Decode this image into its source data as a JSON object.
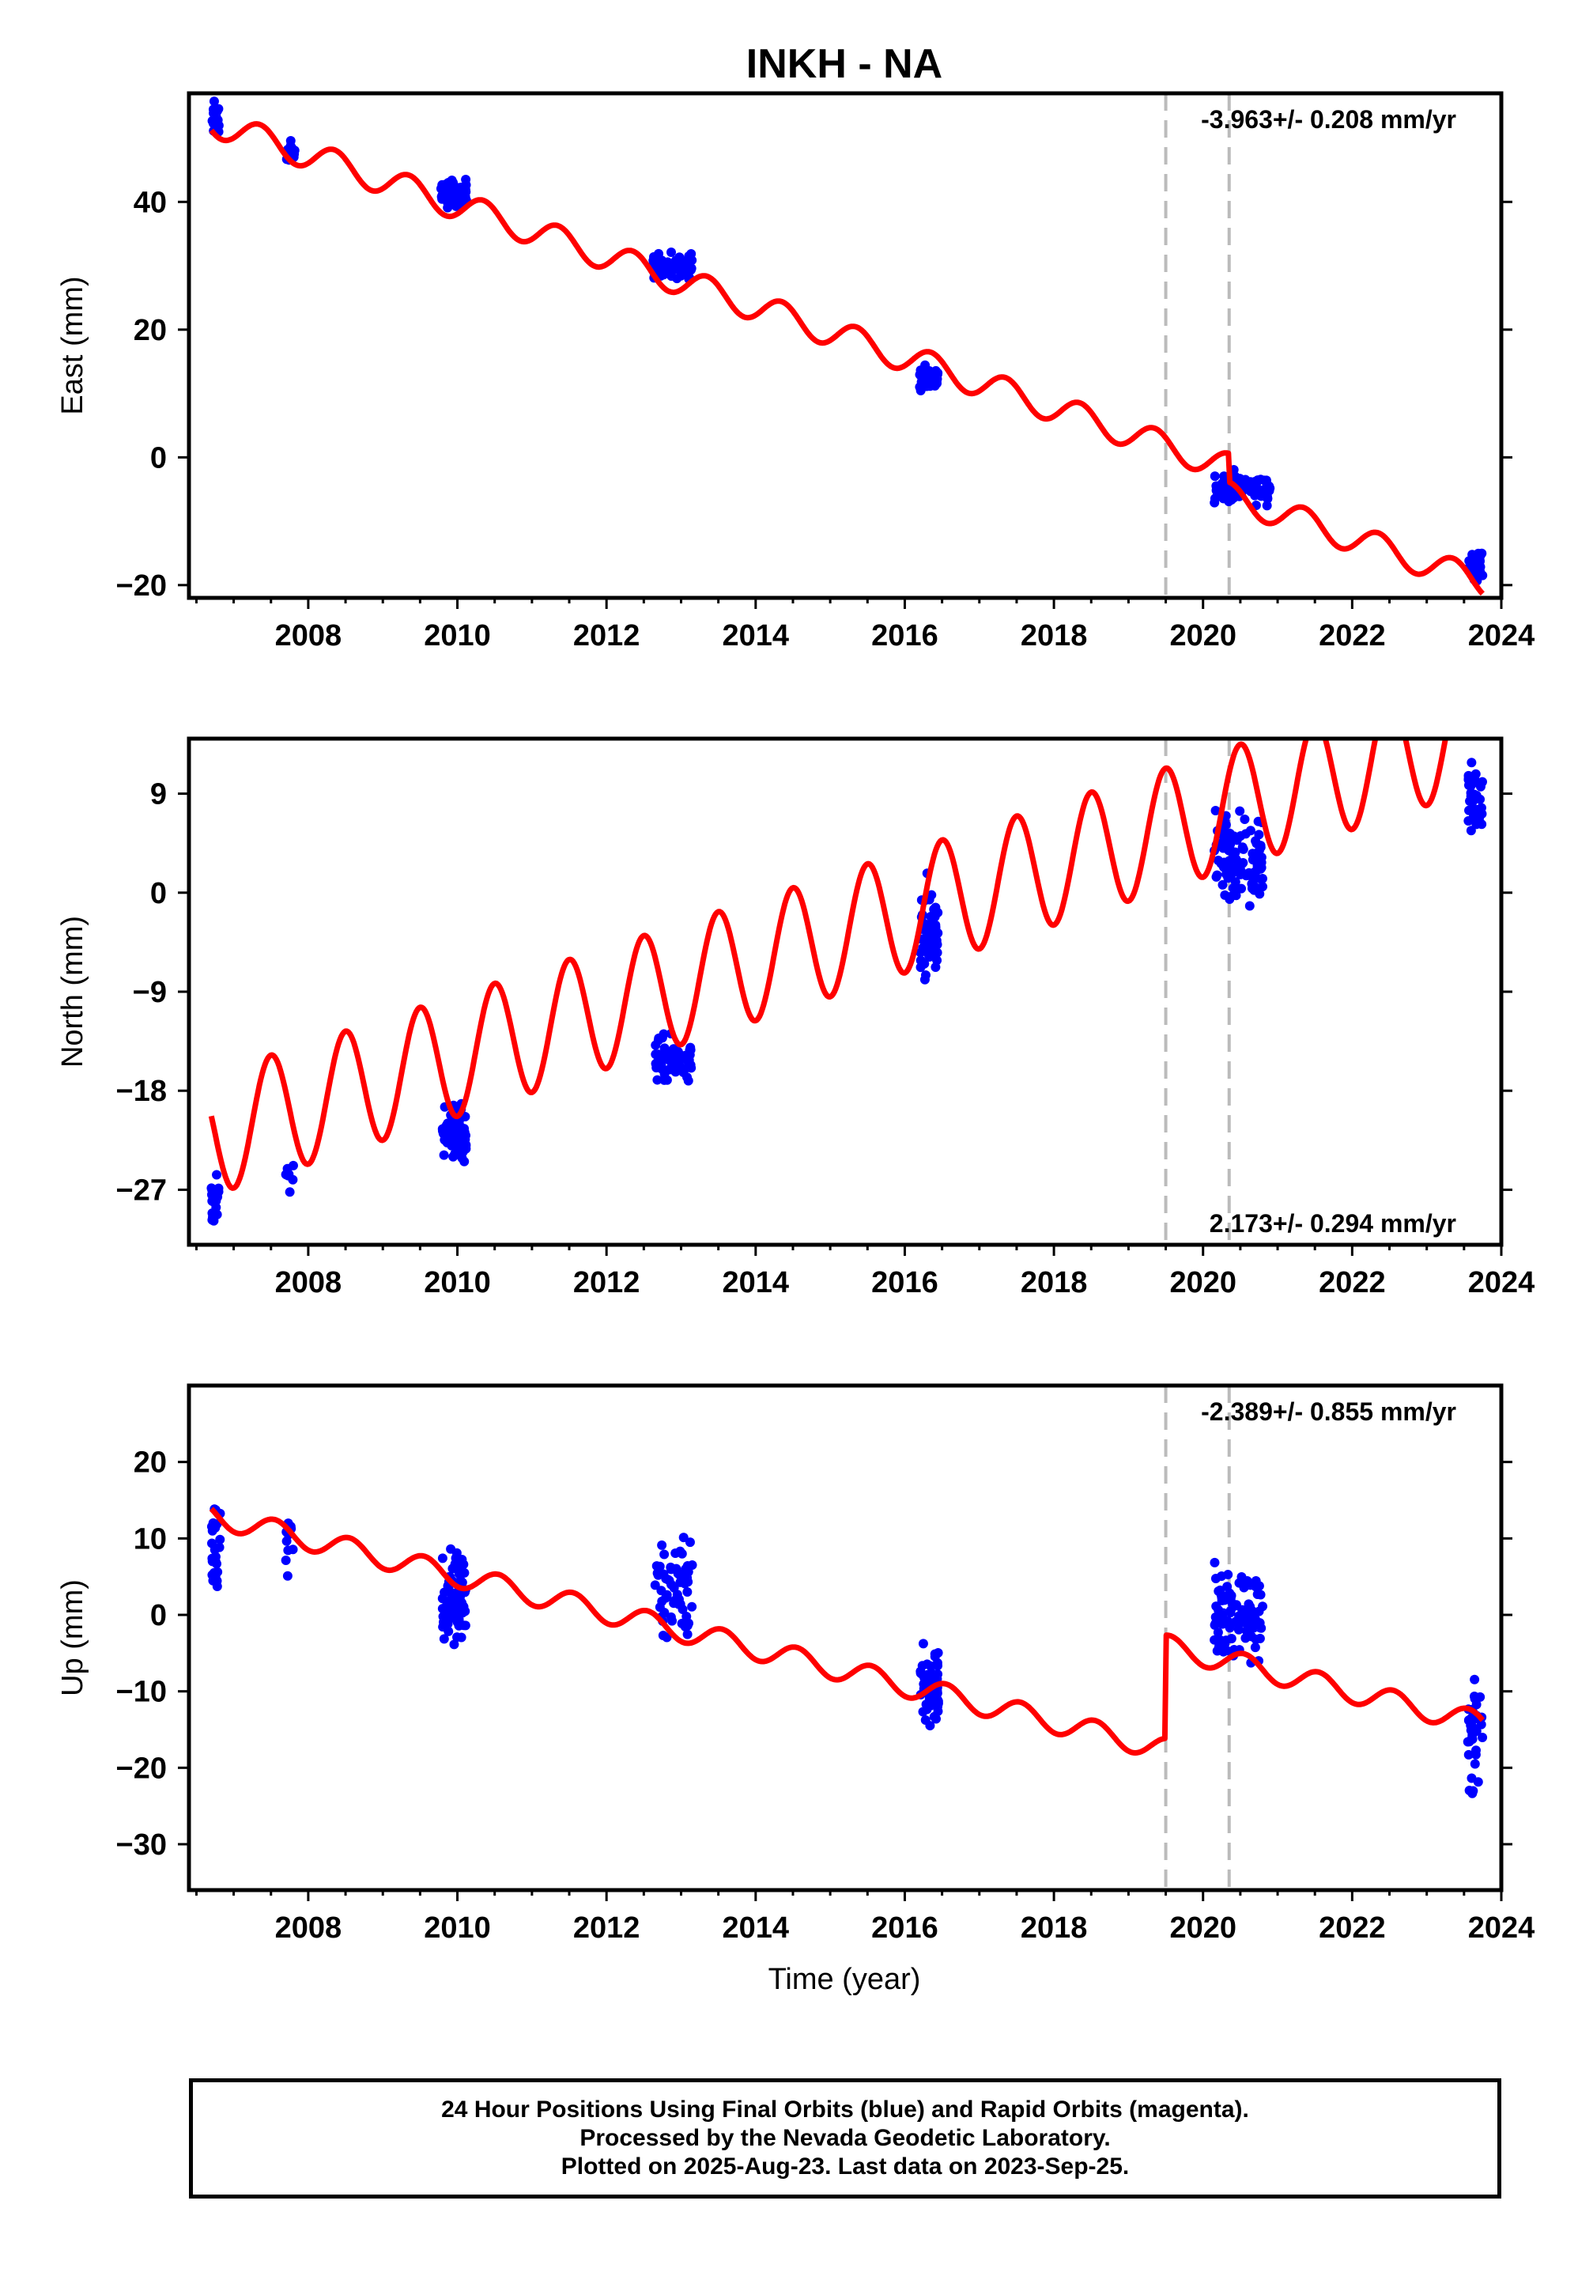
{
  "title": "INKH - NA",
  "xlabel": "Time (year)",
  "x_ticks": [
    "2008",
    "2010",
    "2012",
    "2014",
    "2016",
    "2018",
    "2020",
    "2022",
    "2024"
  ],
  "colors": {
    "data": "#0000ff",
    "model": "#ff0000",
    "break": "#bbbbbb",
    "axes": "#000000"
  },
  "footer": {
    "line1": "24 Hour Positions Using Final Orbits (blue) and Rapid Orbits (magenta).",
    "line2": "Processed by the Nevada Geodetic Laboratory.",
    "line3": "Plotted on 2025-Aug-23. Last data on 2023-Sep-25."
  },
  "chart_data": [
    {
      "type": "scatter",
      "component": "east",
      "ylabel": "East (mm)",
      "rate_label": "-3.963+/- 0.208 mm/yr",
      "rate_position": "top-right",
      "xlim": [
        2006.4,
        2024.0
      ],
      "ylim": [
        -22,
        57
      ],
      "yticks": [
        -20,
        0,
        20,
        40
      ],
      "breaks": [
        2019.5,
        2020.35
      ],
      "model": {
        "name": "model",
        "x0": 2006.7,
        "x1": 2023.75,
        "y_at_x0": 52.5,
        "rate": -3.963,
        "annual_amplitude": 2.2,
        "annual_phase": 0.1,
        "steps": [
          {
            "x": 2019.5,
            "size": 0
          },
          {
            "x": 2020.35,
            "size": -4.5
          }
        ]
      },
      "observation_clusters": [
        {
          "x_start": 2006.7,
          "x_end": 2006.82,
          "y_center": 53.0,
          "y_spread": 2.0,
          "count": 24
        },
        {
          "x_start": 2007.7,
          "x_end": 2007.82,
          "y_center": 48.0,
          "y_spread": 1.5,
          "count": 12
        },
        {
          "x_start": 2009.78,
          "x_end": 2010.12,
          "y_center": 41.3,
          "y_spread": 1.6,
          "count": 80
        },
        {
          "x_start": 2012.62,
          "x_end": 2013.15,
          "y_center": 30.0,
          "y_spread": 1.5,
          "count": 70
        },
        {
          "x_start": 2016.2,
          "x_end": 2016.45,
          "y_center": 12.5,
          "y_spread": 1.5,
          "count": 60
        },
        {
          "x_start": 2020.15,
          "x_end": 2020.9,
          "y_center": -4.8,
          "y_spread": 1.8,
          "count": 110
        },
        {
          "x_start": 2023.55,
          "x_end": 2023.75,
          "y_center": -17.0,
          "y_spread": 1.8,
          "count": 40
        }
      ]
    },
    {
      "type": "scatter",
      "component": "north",
      "ylabel": "North (mm)",
      "rate_label": "2.173+/- 0.294 mm/yr",
      "rate_position": "bottom-right",
      "xlim": [
        2006.4,
        2024.0
      ],
      "ylim": [
        -32,
        14
      ],
      "yticks": [
        -27,
        -18,
        -9,
        0,
        9
      ],
      "breaks": [
        2019.5,
        2020.35
      ],
      "model": {
        "name": "model",
        "x0": 2006.7,
        "x1": 2023.75,
        "y_at_x0": -22.0,
        "rate": 2.173,
        "annual_amplitude": 5.5,
        "annual_phase": 0.25,
        "steps": []
      },
      "observation_clusters": [
        {
          "x_start": 2006.7,
          "x_end": 2006.8,
          "y_center": -28.0,
          "y_spread": 2.0,
          "count": 20
        },
        {
          "x_start": 2007.7,
          "x_end": 2007.8,
          "y_center": -26.0,
          "y_spread": 1.2,
          "count": 8
        },
        {
          "x_start": 2009.8,
          "x_end": 2010.12,
          "y_center": -22.0,
          "y_spread": 2.0,
          "count": 70
        },
        {
          "x_start": 2012.65,
          "x_end": 2013.15,
          "y_center": -15.5,
          "y_spread": 1.8,
          "count": 60
        },
        {
          "x_start": 2016.2,
          "x_end": 2016.45,
          "y_center": -3.5,
          "y_spread": 3.5,
          "count": 60
        },
        {
          "x_start": 2020.15,
          "x_end": 2020.8,
          "y_center": 3.0,
          "y_spread": 3.0,
          "count": 110
        },
        {
          "x_start": 2023.55,
          "x_end": 2023.75,
          "y_center": 8.5,
          "y_spread": 2.5,
          "count": 40
        }
      ]
    },
    {
      "type": "scatter",
      "component": "up",
      "ylabel": "Up (mm)",
      "rate_label": "-2.389+/- 0.855 mm/yr",
      "rate_position": "top-right",
      "xlim": [
        2006.4,
        2024.0
      ],
      "ylim": [
        -36,
        30
      ],
      "yticks": [
        -30,
        -20,
        -10,
        0,
        10,
        20
      ],
      "breaks": [
        2019.5,
        2020.35
      ],
      "model": {
        "name": "model",
        "x0": 2006.7,
        "x1": 2023.75,
        "y_at_x0": 13.0,
        "rate": -2.389,
        "annual_amplitude": 1.5,
        "annual_phase": 0.3,
        "steps": [
          {
            "x": 2019.5,
            "size": 13.5
          }
        ]
      },
      "observation_clusters": [
        {
          "x_start": 2006.7,
          "x_end": 2006.82,
          "y_center": 9.0,
          "y_spread": 4.5,
          "count": 25
        },
        {
          "x_start": 2007.7,
          "x_end": 2007.8,
          "y_center": 9.0,
          "y_spread": 3.5,
          "count": 10
        },
        {
          "x_start": 2009.8,
          "x_end": 2010.12,
          "y_center": 2.5,
          "y_spread": 4.5,
          "count": 80
        },
        {
          "x_start": 2012.65,
          "x_end": 2013.15,
          "y_center": 3.5,
          "y_spread": 6.5,
          "count": 60
        },
        {
          "x_start": 2016.2,
          "x_end": 2016.45,
          "y_center": -9.0,
          "y_spread": 4.5,
          "count": 60
        },
        {
          "x_start": 2020.15,
          "x_end": 2020.8,
          "y_center": 0.0,
          "y_spread": 5.0,
          "count": 110
        },
        {
          "x_start": 2023.55,
          "x_end": 2023.75,
          "y_center": -16.0,
          "y_spread": 6.0,
          "count": 40
        }
      ]
    }
  ]
}
